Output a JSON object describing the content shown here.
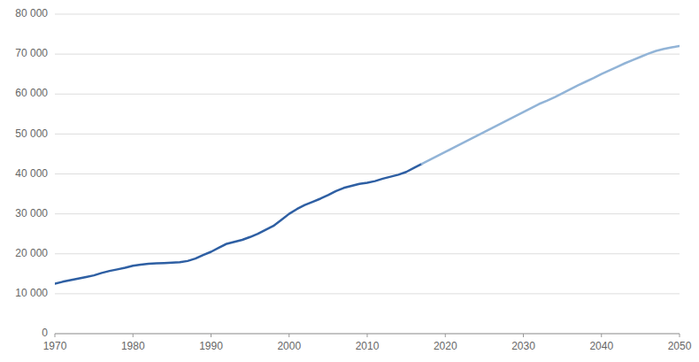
{
  "chart_data": {
    "type": "line",
    "series": [
      {
        "color": "#2E5FA3",
        "x": [
          1970,
          1971,
          1972,
          1973,
          1974,
          1975,
          1976,
          1977,
          1978,
          1979,
          1980,
          1981,
          1982,
          1983,
          1984,
          1985,
          1986,
          1987,
          1988,
          1989,
          1990,
          1991,
          1992,
          1993,
          1994,
          1995,
          1996,
          1997,
          1998,
          1999,
          2000,
          2001,
          2002,
          2003,
          2004,
          2005,
          2006,
          2007,
          2008,
          2009,
          2010,
          2011,
          2012,
          2013,
          2014,
          2015,
          2016,
          2017
        ],
        "values": [
          12500,
          13000,
          13400,
          13800,
          14200,
          14600,
          15200,
          15700,
          16100,
          16500,
          17000,
          17300,
          17500,
          17600,
          17700,
          17800,
          17900,
          18200,
          18800,
          19700,
          20500,
          21500,
          22500,
          23000,
          23500,
          24200,
          25000,
          26000,
          27000,
          28500,
          30000,
          31200,
          32200,
          33000,
          33800,
          34700,
          35700,
          36500,
          37000,
          37500,
          37800,
          38200,
          38800,
          39300,
          39800,
          40500,
          41500,
          42500
        ]
      },
      {
        "color": "#92B4D7",
        "x": [
          2017,
          2018,
          2019,
          2020,
          2021,
          2022,
          2023,
          2024,
          2025,
          2026,
          2027,
          2028,
          2029,
          2030,
          2031,
          2032,
          2033,
          2034,
          2035,
          2036,
          2037,
          2038,
          2039,
          2040,
          2041,
          2042,
          2043,
          2044,
          2045,
          2046,
          2047,
          2048,
          2049,
          2050
        ],
        "values": [
          42500,
          43500,
          44500,
          45500,
          46500,
          47500,
          48500,
          49500,
          50500,
          51500,
          52500,
          53500,
          54500,
          55500,
          56500,
          57500,
          58300,
          59200,
          60200,
          61200,
          62200,
          63100,
          64000,
          65000,
          65900,
          66800,
          67700,
          68500,
          69300,
          70100,
          70800,
          71300,
          71700,
          72000
        ]
      }
    ],
    "xlim": [
      1970,
      2050
    ],
    "ylim": [
      0,
      80000
    ],
    "xticks": [
      1970,
      1980,
      1990,
      2000,
      2010,
      2020,
      2030,
      2040,
      2050
    ],
    "yticks": [
      0,
      {
        "value": 10000,
        "label": "10 000"
      },
      {
        "value": 20000,
        "label": "20 000"
      },
      {
        "value": 30000,
        "label": "30 000"
      },
      {
        "value": 40000,
        "label": "40 000"
      },
      {
        "value": 50000,
        "label": "50 000"
      },
      {
        "value": 60000,
        "label": "60 000"
      },
      {
        "value": 70000,
        "label": "70 000"
      },
      {
        "value": 80000,
        "label": "80 000"
      }
    ],
    "grid": true
  }
}
